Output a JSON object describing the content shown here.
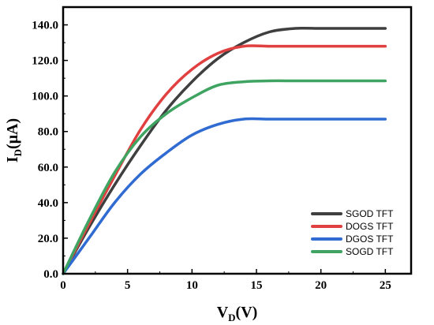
{
  "chart_data": {
    "type": "line",
    "xlabel": {
      "main": "V",
      "sub": "D",
      "unit": "(V)"
    },
    "ylabel": {
      "main": "I",
      "sub": "D",
      "unit": "(μA)"
    },
    "xlim": [
      0,
      27
    ],
    "ylim": [
      0,
      150
    ],
    "xticks": [
      0,
      5,
      10,
      15,
      20,
      25
    ],
    "xtick_labels": [
      "0",
      "5",
      "10",
      "15",
      "20",
      "25"
    ],
    "yticks": [
      0,
      20,
      40,
      60,
      80,
      100,
      120,
      140
    ],
    "ytick_labels": [
      "0.0",
      "20.0",
      "40.0",
      "60.0",
      "80.0",
      "100.0",
      "120.0",
      "140.0"
    ],
    "grid": false,
    "legend_position": "bottom-right",
    "series": [
      {
        "name": "SGOD TFT",
        "color": "#3f3f3f",
        "x": [
          0,
          2,
          4,
          6,
          8,
          10,
          12,
          14,
          16,
          18,
          20,
          22,
          25
        ],
        "y": [
          0,
          26,
          50,
          72,
          92,
          108,
          121,
          130,
          136,
          138,
          138,
          138,
          138
        ]
      },
      {
        "name": "DOGS TFT",
        "color": "#e0403f",
        "x": [
          0,
          2,
          4,
          6,
          8,
          10,
          12,
          14,
          16,
          18,
          20,
          22,
          25
        ],
        "y": [
          0,
          28,
          55,
          81,
          101,
          115,
          124,
          128,
          128,
          128,
          128,
          128,
          128
        ]
      },
      {
        "name": "DGOS TFT",
        "color": "#2f6bd1",
        "x": [
          0,
          2,
          4,
          6,
          8,
          10,
          12,
          14,
          16,
          18,
          20,
          22,
          25
        ],
        "y": [
          0,
          20,
          40,
          56,
          68,
          78,
          84,
          87,
          87,
          87,
          87,
          87,
          87
        ]
      },
      {
        "name": "SOGD TFT",
        "color": "#3fa461",
        "x": [
          0,
          2,
          4,
          6,
          8,
          10,
          12,
          14,
          16,
          18,
          20,
          22,
          25
        ],
        "y": [
          0,
          30,
          57,
          77,
          90,
          99,
          106,
          108,
          108.5,
          108.5,
          108.5,
          108.5,
          108.5
        ]
      }
    ]
  }
}
